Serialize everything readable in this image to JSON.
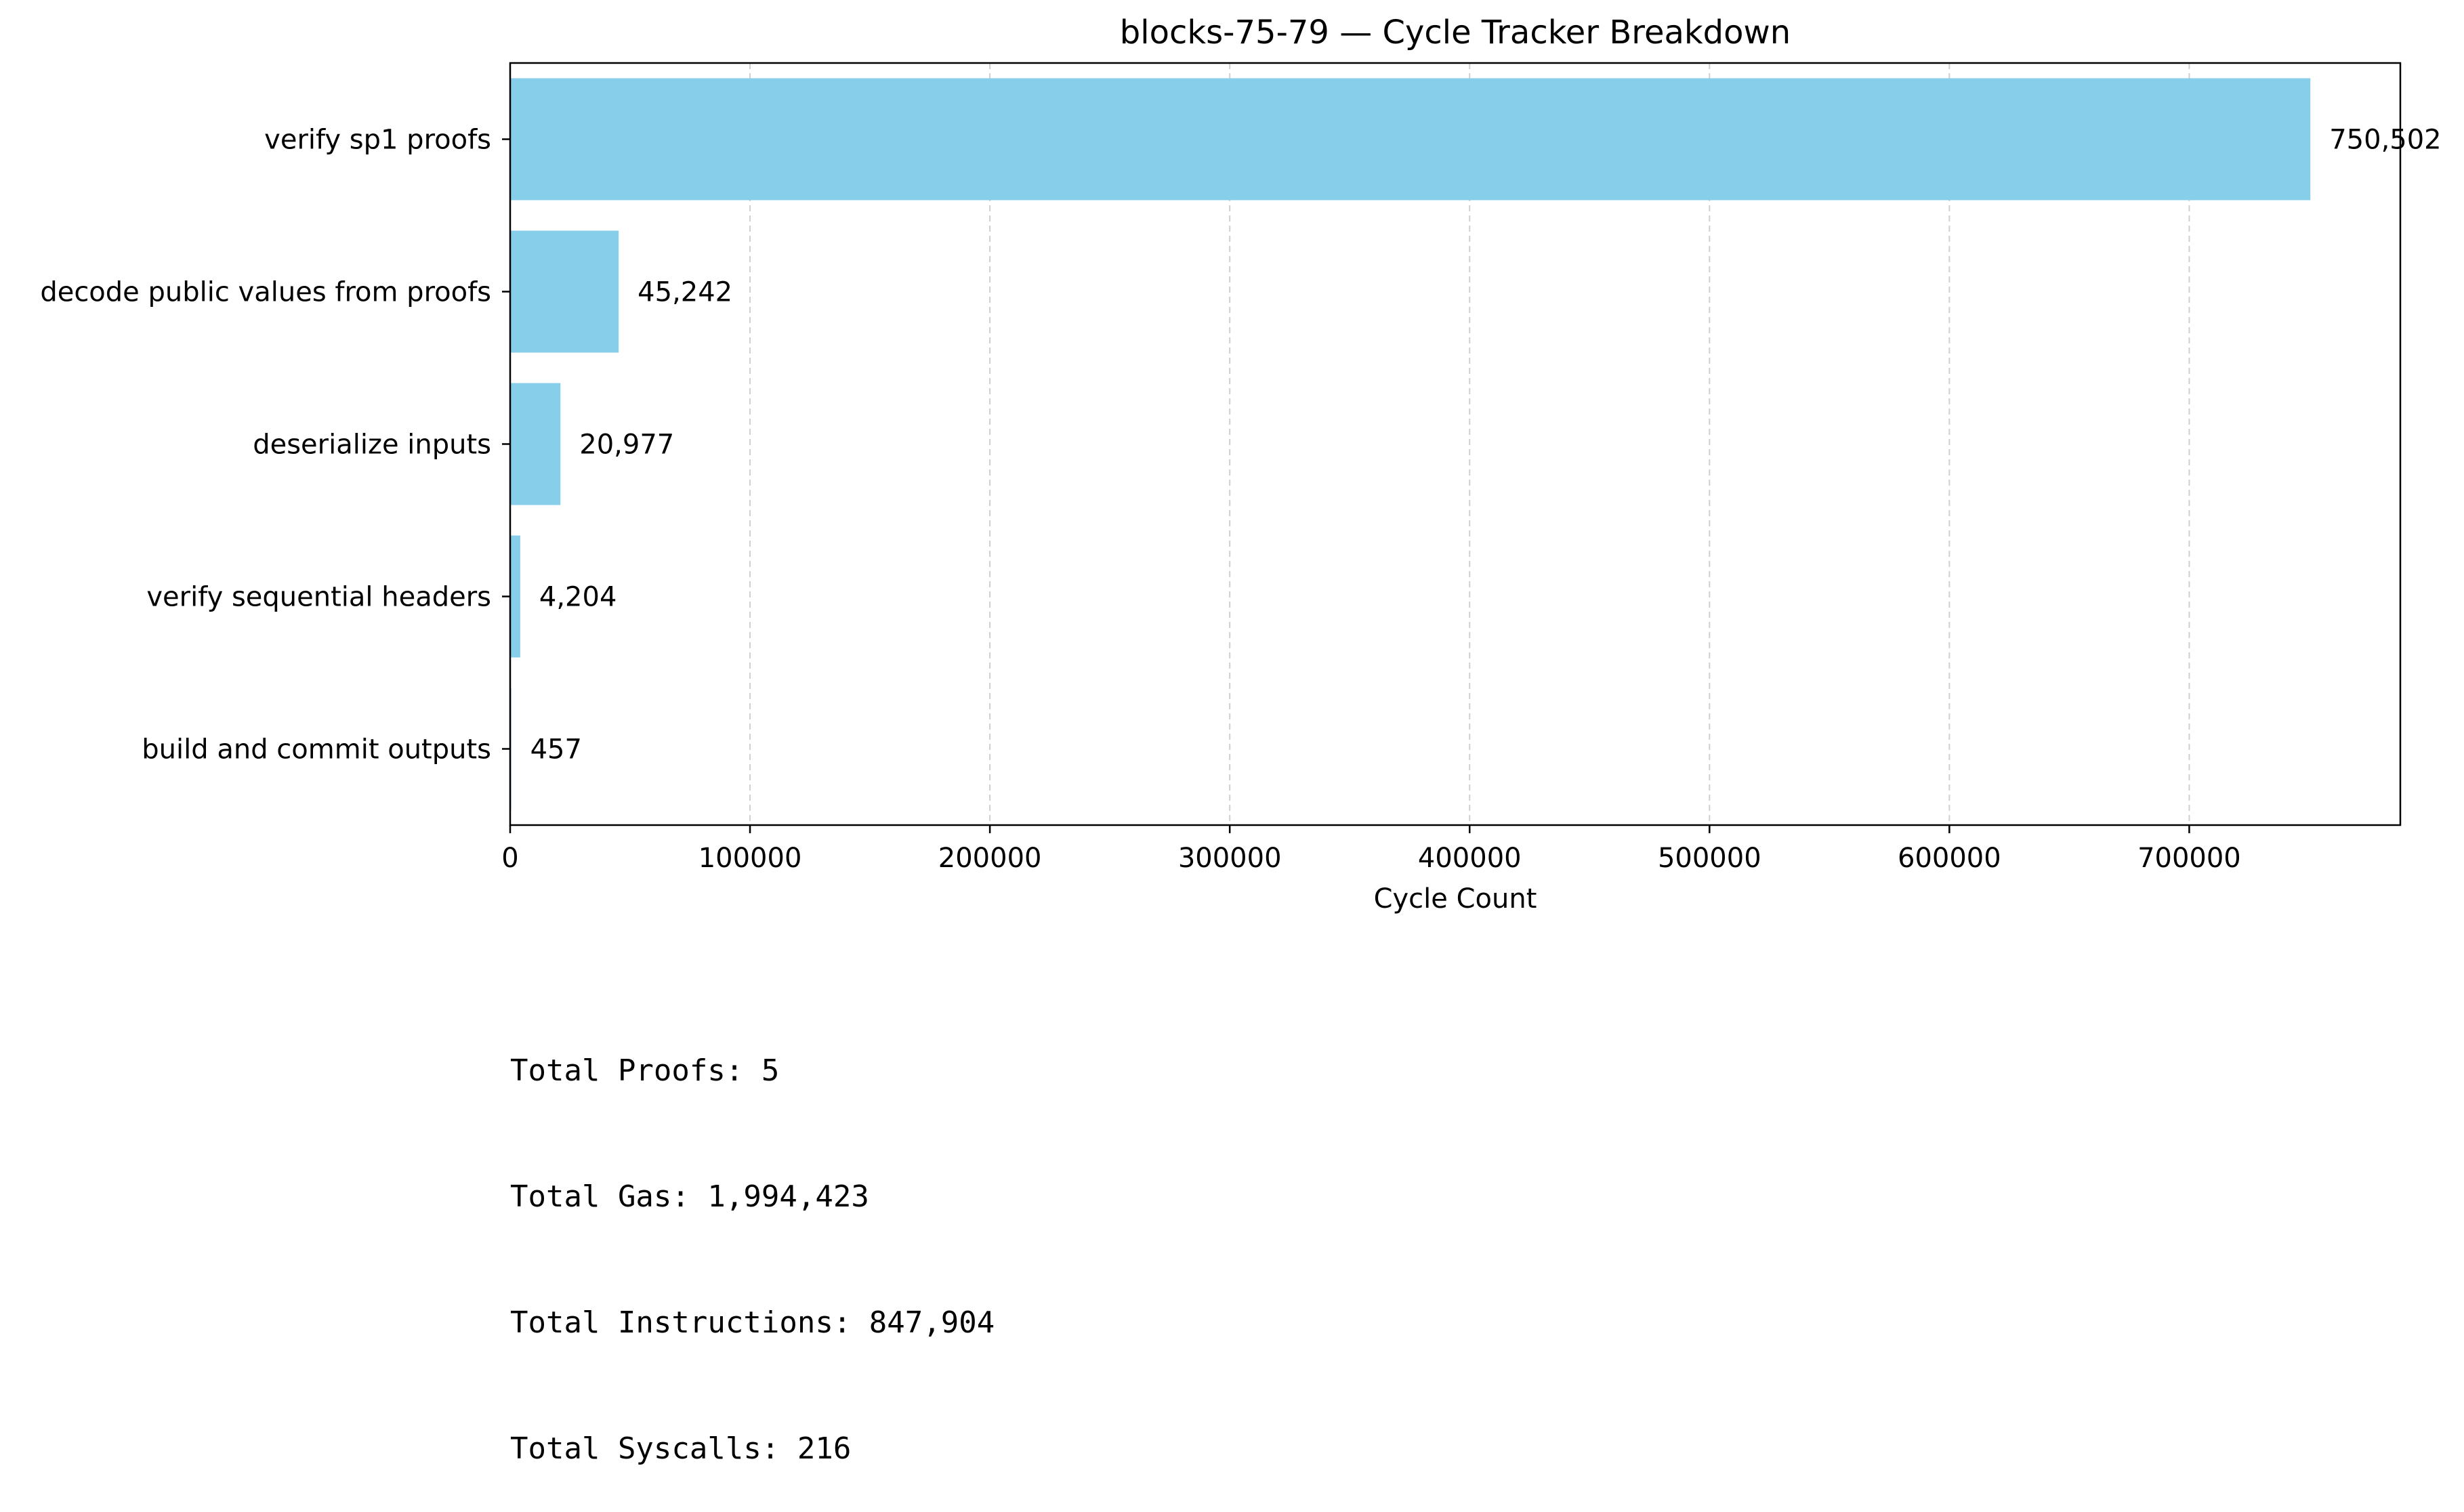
{
  "chart_data": {
    "type": "bar",
    "orientation": "horizontal",
    "title": "blocks-75-79 — Cycle Tracker Breakdown",
    "xlabel": "Cycle Count",
    "ylabel": "",
    "categories": [
      "verify sp1 proofs",
      "decode public values from proofs",
      "deserialize inputs",
      "verify sequential headers",
      "build and commit outputs"
    ],
    "values": [
      750502,
      45242,
      20977,
      4204,
      457
    ],
    "value_labels": [
      "750,502",
      "45,242",
      "20,977",
      "4,204",
      "457"
    ],
    "xlim": [
      0,
      788000
    ],
    "xticks": [
      0,
      100000,
      200000,
      300000,
      400000,
      500000,
      600000,
      700000
    ],
    "xtick_labels": [
      "0",
      "100000",
      "200000",
      "300000",
      "400000",
      "500000",
      "600000",
      "700000"
    ],
    "grid": "x-dashed",
    "bar_color": "#87ceeb"
  },
  "stats": {
    "total_proofs": "Total Proofs: 5",
    "total_gas": "Total Gas: 1,994,423",
    "total_instructions": "Total Instructions: 847,904",
    "total_syscalls": "Total Syscalls: 216"
  }
}
